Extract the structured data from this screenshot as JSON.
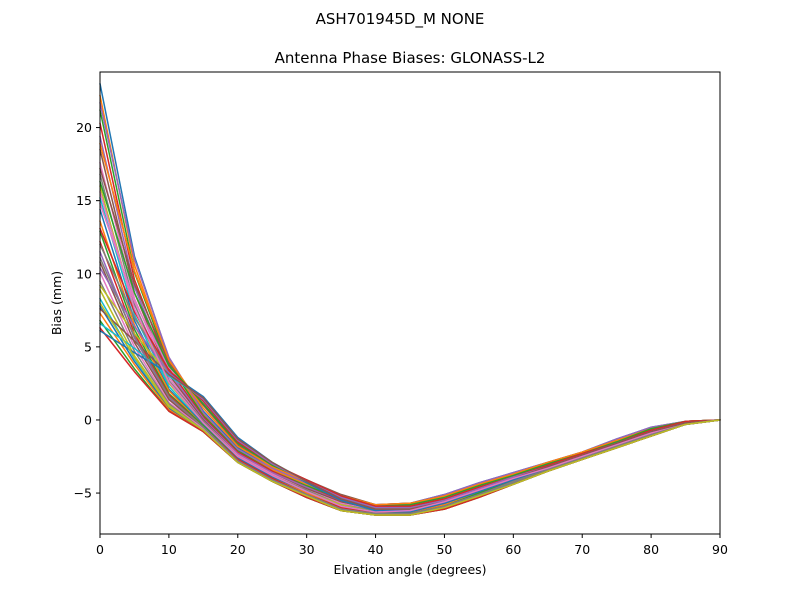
{
  "chart_data": {
    "type": "line",
    "suptitle": "ASH701945D_M    NONE",
    "title": "Antenna Phase Biases: GLONASS-L2",
    "xlabel": "Elvation angle (degrees)",
    "ylabel": "Bias (mm)",
    "xlim": [
      0,
      90
    ],
    "ylim": [
      -7.8,
      23.8
    ],
    "xticks": [
      0,
      10,
      20,
      30,
      40,
      50,
      60,
      70,
      80,
      90
    ],
    "yticks": [
      -5,
      0,
      5,
      10,
      15,
      20
    ],
    "ytick_labels": [
      "−5",
      "0",
      "5",
      "10",
      "15",
      "20"
    ],
    "grid": false,
    "legend": "none",
    "x": [
      0,
      5,
      10,
      15,
      20,
      25,
      30,
      35,
      40,
      45,
      50,
      55,
      60,
      65,
      70,
      75,
      80,
      85,
      90
    ],
    "colors": [
      "#1f77b4",
      "#ff7f0e",
      "#2ca02c",
      "#d62728",
      "#9467bd",
      "#8c564b",
      "#e377c2",
      "#7f7f7f",
      "#bcbd22",
      "#17becf"
    ],
    "series": [
      {
        "values": [
          23.0,
          11.2,
          4.2,
          0.6,
          -1.9,
          -3.3,
          -4.3,
          -5.2,
          -5.8,
          -5.7,
          -5.1,
          -4.3,
          -3.6,
          -2.9,
          -2.2,
          -1.3,
          -0.5,
          -0.1,
          0
        ]
      },
      {
        "values": [
          22.2,
          10.6,
          4.0,
          0.4,
          -2.0,
          -3.4,
          -4.4,
          -5.3,
          -5.9,
          -5.8,
          -5.2,
          -4.4,
          -3.7,
          -3.0,
          -2.3,
          -1.4,
          -0.6,
          -0.1,
          0
        ]
      },
      {
        "values": [
          21.2,
          10.1,
          3.8,
          0.3,
          -2.1,
          -3.5,
          -4.5,
          -5.4,
          -5.9,
          -5.9,
          -5.3,
          -4.5,
          -3.8,
          -3.0,
          -2.3,
          -1.5,
          -0.7,
          -0.1,
          0
        ]
      },
      {
        "values": [
          20.3,
          9.6,
          3.5,
          0.2,
          -2.2,
          -3.5,
          -4.6,
          -5.5,
          -6.0,
          -6.0,
          -5.4,
          -4.6,
          -3.8,
          -3.1,
          -2.4,
          -1.5,
          -0.7,
          -0.2,
          0
        ]
      },
      {
        "values": [
          19.4,
          9.1,
          3.3,
          0.1,
          -2.3,
          -3.6,
          -4.6,
          -5.6,
          -6.1,
          -6.0,
          -5.5,
          -4.7,
          -3.9,
          -3.1,
          -2.4,
          -1.6,
          -0.8,
          -0.2,
          0
        ]
      },
      {
        "values": [
          18.5,
          8.7,
          3.1,
          0.0,
          -2.4,
          -3.7,
          -4.7,
          -5.6,
          -6.1,
          -6.1,
          -5.5,
          -4.7,
          -3.9,
          -3.2,
          -2.4,
          -1.6,
          -0.8,
          -0.2,
          0
        ]
      },
      {
        "values": [
          17.6,
          8.3,
          2.9,
          -0.1,
          -2.4,
          -3.7,
          -4.8,
          -5.7,
          -6.2,
          -6.1,
          -5.6,
          -4.8,
          -4.0,
          -3.2,
          -2.5,
          -1.7,
          -0.9,
          -0.2,
          0
        ]
      },
      {
        "values": [
          16.8,
          7.9,
          2.7,
          -0.1,
          -2.5,
          -3.8,
          -4.8,
          -5.8,
          -6.2,
          -6.2,
          -5.6,
          -4.8,
          -4.0,
          -3.2,
          -2.5,
          -1.7,
          -0.9,
          -0.3,
          0
        ]
      },
      {
        "values": [
          16.0,
          7.5,
          2.5,
          -0.2,
          -2.5,
          -3.8,
          -4.9,
          -5.8,
          -6.3,
          -6.2,
          -5.7,
          -4.9,
          -4.1,
          -3.3,
          -2.5,
          -1.7,
          -0.9,
          -0.3,
          0
        ]
      },
      {
        "values": [
          15.2,
          7.2,
          2.3,
          -0.3,
          -2.6,
          -3.9,
          -4.9,
          -5.9,
          -6.3,
          -6.3,
          -5.7,
          -4.9,
          -4.1,
          -3.3,
          -2.5,
          -1.8,
          -1.0,
          -0.3,
          0
        ]
      },
      {
        "values": [
          14.4,
          6.8,
          2.1,
          -0.3,
          -2.6,
          -3.9,
          -5.0,
          -5.9,
          -6.3,
          -6.3,
          -5.8,
          -5.0,
          -4.1,
          -3.3,
          -2.6,
          -1.8,
          -1.0,
          -0.3,
          0
        ]
      },
      {
        "values": [
          13.6,
          6.5,
          2.0,
          -0.4,
          -2.7,
          -4.0,
          -5.0,
          -6.0,
          -6.4,
          -6.4,
          -5.8,
          -5.0,
          -4.2,
          -3.4,
          -2.6,
          -1.8,
          -1.0,
          -0.3,
          0
        ]
      },
      {
        "values": [
          12.9,
          6.2,
          1.8,
          -0.4,
          -2.7,
          -4.0,
          -5.1,
          -6.0,
          -6.4,
          -6.4,
          -5.9,
          -5.0,
          -4.2,
          -3.4,
          -2.6,
          -1.8,
          -1.0,
          -0.3,
          0
        ]
      },
      {
        "values": [
          12.2,
          5.9,
          1.7,
          -0.5,
          -2.7,
          -4.0,
          -5.1,
          -6.0,
          -6.4,
          -6.4,
          -5.9,
          -5.1,
          -4.2,
          -3.4,
          -2.6,
          -1.8,
          -1.0,
          -0.3,
          0
        ]
      },
      {
        "values": [
          11.5,
          5.6,
          1.5,
          -0.5,
          -2.8,
          -4.1,
          -5.1,
          -6.1,
          -6.5,
          -6.5,
          -5.9,
          -5.1,
          -4.3,
          -3.4,
          -2.6,
          -1.9,
          -1.1,
          -0.3,
          0
        ]
      },
      {
        "values": [
          10.8,
          5.3,
          1.4,
          -0.6,
          -2.8,
          -4.1,
          -5.2,
          -6.1,
          -6.5,
          -6.5,
          -6.0,
          -5.1,
          -4.3,
          -3.5,
          -2.6,
          -1.9,
          -1.1,
          -0.3,
          0
        ]
      },
      {
        "values": [
          10.1,
          5.0,
          1.2,
          -0.6,
          -2.8,
          -4.1,
          -5.2,
          -6.1,
          -6.5,
          -6.5,
          -6.0,
          -5.2,
          -4.3,
          -3.5,
          -2.7,
          -1.9,
          -1.1,
          -0.3,
          0
        ]
      },
      {
        "values": [
          9.5,
          4.7,
          1.1,
          -0.7,
          -2.9,
          -4.1,
          -5.2,
          -6.1,
          -6.5,
          -6.5,
          -6.0,
          -5.2,
          -4.3,
          -3.5,
          -2.7,
          -1.9,
          -1.1,
          -0.3,
          0
        ]
      },
      {
        "values": [
          8.9,
          4.4,
          1.0,
          -0.7,
          -2.9,
          -4.2,
          -5.2,
          -6.2,
          -6.5,
          -6.5,
          -6.0,
          -5.2,
          -4.4,
          -3.5,
          -2.7,
          -1.9,
          -1.1,
          -0.3,
          0
        ]
      },
      {
        "values": [
          8.3,
          4.2,
          0.9,
          -0.7,
          -2.9,
          -4.2,
          -5.3,
          -6.2,
          -6.5,
          -6.5,
          -6.0,
          -5.2,
          -4.4,
          -3.5,
          -2.7,
          -1.9,
          -1.1,
          -0.3,
          0
        ]
      },
      {
        "values": [
          7.8,
          4.0,
          0.8,
          -0.8,
          -2.9,
          -4.2,
          -5.3,
          -6.2,
          -6.5,
          -6.5,
          -6.0,
          -5.2,
          -4.4,
          -3.5,
          -2.7,
          -1.9,
          -1.1,
          -0.3,
          0
        ]
      },
      {
        "values": [
          7.3,
          3.8,
          0.7,
          -0.8,
          -2.9,
          -4.2,
          -5.3,
          -6.2,
          -6.5,
          -6.5,
          -6.1,
          -5.3,
          -4.4,
          -3.5,
          -2.7,
          -1.9,
          -1.1,
          -0.3,
          0
        ]
      },
      {
        "values": [
          6.8,
          3.5,
          0.6,
          -0.8,
          -2.9,
          -4.2,
          -5.3,
          -6.2,
          -6.5,
          -6.5,
          -6.1,
          -5.3,
          -4.4,
          -3.5,
          -2.7,
          -1.9,
          -1.1,
          -0.3,
          0
        ]
      },
      {
        "values": [
          6.3,
          3.3,
          0.6,
          -0.8,
          -2.9,
          -4.2,
          -5.3,
          -6.2,
          -6.5,
          -6.5,
          -6.1,
          -5.3,
          -4.4,
          -3.5,
          -2.7,
          -1.9,
          -1.1,
          -0.3,
          0
        ]
      },
      {
        "values": [
          21.7,
          11.0,
          4.3,
          0.5,
          -2.0,
          -3.3,
          -4.3,
          -5.2,
          -5.8,
          -5.7,
          -5.1,
          -4.3,
          -3.6,
          -2.9,
          -2.2,
          -1.3,
          -0.5,
          -0.1,
          0
        ]
      },
      {
        "values": [
          17.2,
          9.3,
          3.9,
          1.0,
          -1.7,
          -3.1,
          -4.1,
          -5.1,
          -5.8,
          -5.7,
          -5.2,
          -4.5,
          -3.8,
          -3.0,
          -2.3,
          -1.5,
          -0.6,
          -0.1,
          0
        ]
      },
      {
        "values": [
          14.8,
          8.1,
          3.6,
          1.2,
          -1.6,
          -3.1,
          -4.1,
          -5.2,
          -5.9,
          -5.8,
          -5.3,
          -4.6,
          -3.8,
          -3.1,
          -2.3,
          -1.5,
          -0.7,
          -0.1,
          0
        ]
      },
      {
        "values": [
          12.0,
          7.0,
          3.3,
          1.3,
          -1.5,
          -3.0,
          -4.1,
          -5.2,
          -5.9,
          -5.9,
          -5.4,
          -4.7,
          -3.9,
          -3.1,
          -2.3,
          -1.6,
          -0.7,
          -0.1,
          0
        ]
      },
      {
        "values": [
          9.2,
          5.9,
          3.1,
          1.4,
          -1.4,
          -3.0,
          -4.2,
          -5.3,
          -6.0,
          -6.0,
          -5.5,
          -4.8,
          -4.0,
          -3.2,
          -2.4,
          -1.6,
          -0.8,
          -0.2,
          0
        ]
      },
      {
        "values": [
          6.6,
          4.9,
          3.0,
          1.5,
          -1.3,
          -2.9,
          -4.2,
          -5.4,
          -6.1,
          -6.1,
          -5.6,
          -4.8,
          -4.0,
          -3.2,
          -2.4,
          -1.6,
          -0.8,
          -0.2,
          0
        ]
      },
      {
        "values": [
          6.1,
          4.6,
          3.2,
          1.6,
          -1.2,
          -2.9,
          -4.3,
          -5.5,
          -6.2,
          -6.2,
          -5.7,
          -4.9,
          -4.1,
          -3.3,
          -2.5,
          -1.7,
          -0.9,
          -0.2,
          0
        ]
      },
      {
        "values": [
          18.9,
          10.2,
          4.1,
          0.8,
          -1.8,
          -3.2,
          -4.2,
          -5.2,
          -5.8,
          -5.7,
          -5.2,
          -4.4,
          -3.7,
          -2.9,
          -2.2,
          -1.4,
          -0.6,
          -0.1,
          0
        ]
      },
      {
        "values": [
          16.3,
          8.7,
          3.7,
          1.1,
          -1.6,
          -3.1,
          -4.1,
          -5.2,
          -5.9,
          -5.8,
          -5.3,
          -4.5,
          -3.8,
          -3.0,
          -2.3,
          -1.5,
          -0.6,
          -0.1,
          0
        ]
      },
      {
        "values": [
          13.1,
          7.4,
          3.4,
          1.3,
          -1.5,
          -3.0,
          -4.1,
          -5.2,
          -5.9,
          -5.9,
          -5.4,
          -4.6,
          -3.9,
          -3.1,
          -2.3,
          -1.6,
          -0.7,
          -0.1,
          0
        ]
      },
      {
        "values": [
          10.4,
          6.4,
          3.2,
          1.4,
          -1.4,
          -3.0,
          -4.2,
          -5.3,
          -6.0,
          -6.0,
          -5.5,
          -4.7,
          -3.9,
          -3.2,
          -2.4,
          -1.6,
          -0.8,
          -0.2,
          0
        ]
      },
      {
        "values": [
          7.6,
          5.4,
          3.1,
          1.5,
          -1.3,
          -2.9,
          -4.2,
          -5.4,
          -6.1,
          -6.1,
          -5.6,
          -4.8,
          -4.0,
          -3.2,
          -2.4,
          -1.6,
          -0.8,
          -0.2,
          0
        ]
      },
      {
        "values": [
          15.6,
          7.6,
          2.6,
          -0.2,
          -2.5,
          -3.8,
          -4.9,
          -5.9,
          -6.3,
          -6.2,
          -5.6,
          -4.8,
          -4.0,
          -3.3,
          -2.5,
          -1.7,
          -0.9,
          -0.3,
          0
        ]
      },
      {
        "values": [
          11.1,
          5.7,
          1.6,
          -0.5,
          -2.8,
          -4.1,
          -5.1,
          -6.1,
          -6.4,
          -6.4,
          -5.9,
          -5.1,
          -4.2,
          -3.4,
          -2.6,
          -1.8,
          -1.0,
          -0.3,
          0
        ]
      },
      {
        "values": [
          8.0,
          4.3,
          0.9,
          -0.7,
          -2.9,
          -4.2,
          -5.2,
          -6.2,
          -6.5,
          -6.5,
          -6.0,
          -5.2,
          -4.4,
          -3.5,
          -2.7,
          -1.9,
          -1.1,
          -0.3,
          0
        ]
      }
    ]
  }
}
